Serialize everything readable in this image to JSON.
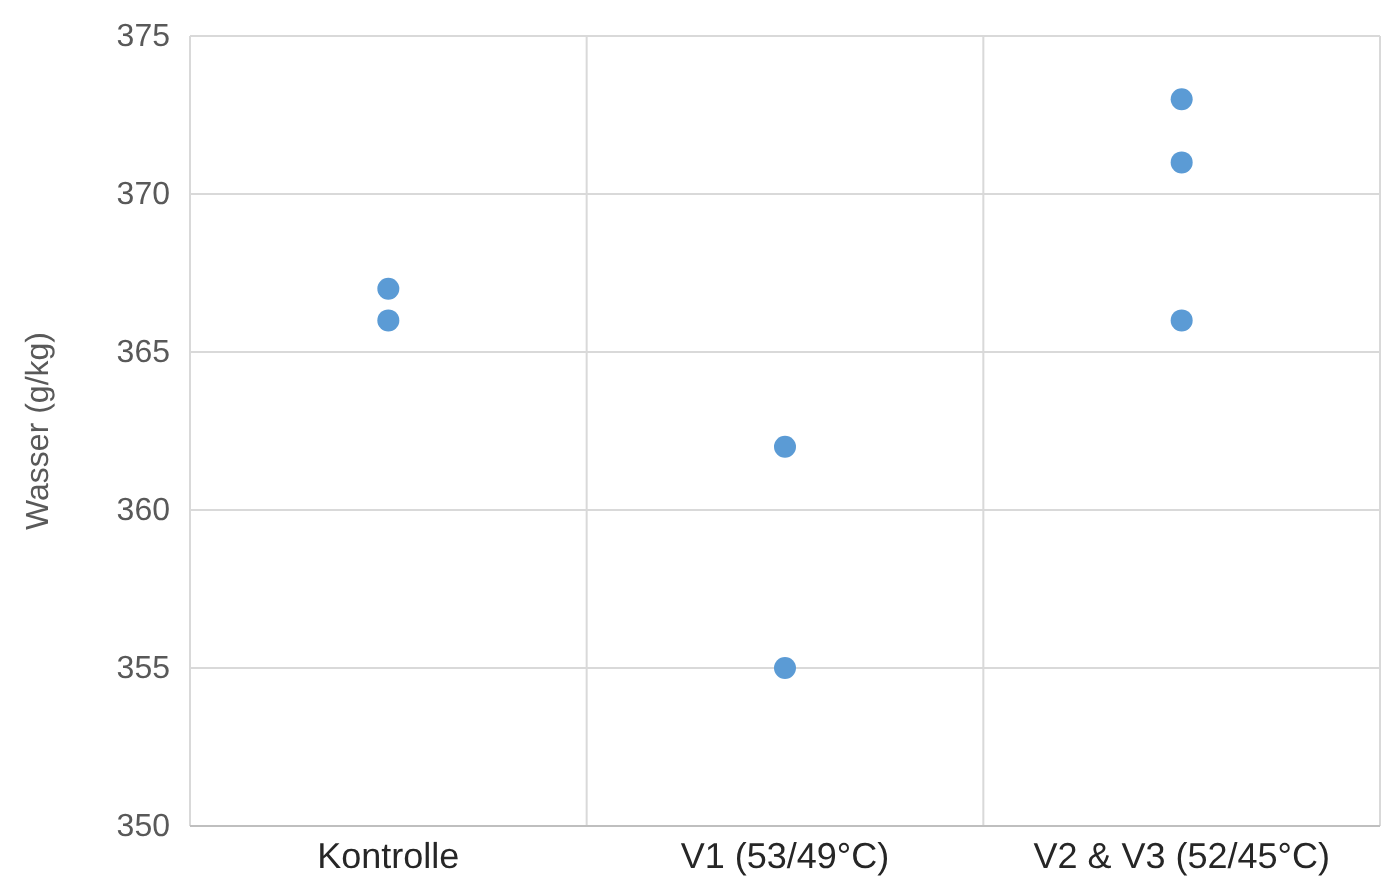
{
  "chart_data": {
    "type": "scatter",
    "ylabel": "Wasser (g/kg)",
    "categories": [
      "Kontrolle",
      "V1 (53/49°C)",
      "V2 & V3 (52/45°C)"
    ],
    "series": [
      {
        "color": "#5b9bd5",
        "x": [
          "Kontrolle",
          "Kontrolle",
          "V1 (53/49°C)",
          "V1 (53/49°C)",
          "V2 & V3 (52/45°C)",
          "V2 & V3 (52/45°C)",
          "V2 & V3 (52/45°C)"
        ],
        "values": [
          367,
          366,
          362,
          355,
          373,
          371,
          366
        ]
      }
    ],
    "ylim": [
      350,
      375
    ],
    "yticks": [
      350,
      355,
      360,
      365,
      370,
      375
    ],
    "grid": true,
    "marker": "circle"
  }
}
